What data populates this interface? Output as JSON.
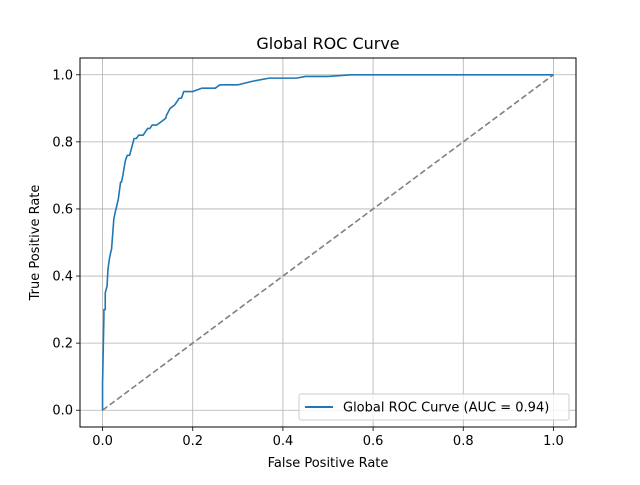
{
  "chart_data": {
    "type": "line",
    "title": "Global ROC Curve",
    "xlabel": "False Positive Rate",
    "ylabel": "True Positive Rate",
    "xlim": [
      -0.05,
      1.05
    ],
    "ylim": [
      -0.05,
      1.05
    ],
    "xticks": [
      "0.0",
      "0.2",
      "0.4",
      "0.6",
      "0.8",
      "1.0"
    ],
    "yticks": [
      "0.0",
      "0.2",
      "0.4",
      "0.6",
      "0.8",
      "1.0"
    ],
    "xtick_values": [
      0,
      0.2,
      0.4,
      0.6,
      0.8,
      1.0
    ],
    "ytick_values": [
      0,
      0.2,
      0.4,
      0.6,
      0.8,
      1.0
    ],
    "grid": true,
    "legend_position": "bottom-right",
    "series": [
      {
        "name": "Global ROC Curve (AUC = 0.94)",
        "color": "#1f77b4",
        "style": "solid",
        "x": [
          0.0,
          0.0,
          0.003,
          0.003,
          0.006,
          0.006,
          0.01,
          0.012,
          0.015,
          0.018,
          0.02,
          0.025,
          0.028,
          0.03,
          0.03,
          0.035,
          0.04,
          0.042,
          0.045,
          0.045,
          0.05,
          0.052,
          0.055,
          0.058,
          0.06,
          0.07,
          0.075,
          0.08,
          0.09,
          0.1,
          0.105,
          0.11,
          0.12,
          0.13,
          0.14,
          0.142,
          0.15,
          0.16,
          0.17,
          0.175,
          0.18,
          0.2,
          0.22,
          0.25,
          0.26,
          0.3,
          0.33,
          0.37,
          0.38,
          0.43,
          0.45,
          0.5,
          0.55,
          0.56,
          1.0
        ],
        "y": [
          0.0,
          0.08,
          0.28,
          0.3,
          0.3,
          0.35,
          0.37,
          0.42,
          0.45,
          0.47,
          0.48,
          0.57,
          0.59,
          0.6,
          0.6,
          0.63,
          0.68,
          0.68,
          0.7,
          0.7,
          0.74,
          0.75,
          0.76,
          0.76,
          0.76,
          0.81,
          0.81,
          0.82,
          0.82,
          0.84,
          0.84,
          0.85,
          0.85,
          0.86,
          0.87,
          0.88,
          0.9,
          0.91,
          0.93,
          0.93,
          0.95,
          0.95,
          0.96,
          0.96,
          0.97,
          0.97,
          0.98,
          0.99,
          0.99,
          0.99,
          0.995,
          0.995,
          1.0,
          1.0,
          1.0
        ]
      },
      {
        "name": "",
        "color": "#808080",
        "style": "dashed",
        "x": [
          0.0,
          1.0
        ],
        "y": [
          0.0,
          1.0
        ]
      }
    ]
  }
}
